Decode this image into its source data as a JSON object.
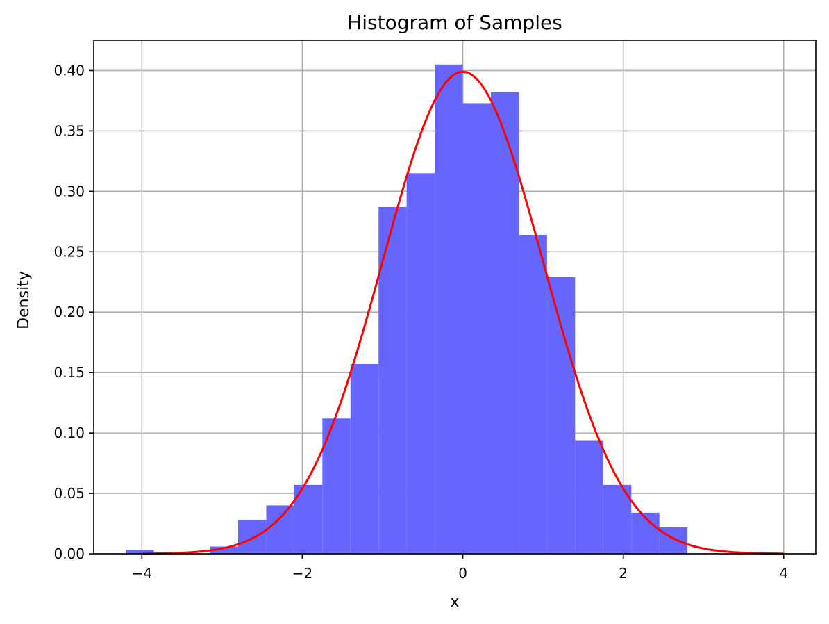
{
  "chart_data": {
    "type": "bar",
    "title": "Histogram of Samples",
    "xlabel": "x",
    "ylabel": "Density",
    "xlim": [
      -4.6,
      4.4
    ],
    "ylim": [
      0,
      0.425
    ],
    "grid": true,
    "xticks": [
      -4,
      -2,
      0,
      2,
      4
    ],
    "xtick_labels": [
      "−4",
      "−2",
      "0",
      "2",
      "4"
    ],
    "yticks": [
      0.0,
      0.05,
      0.1,
      0.15,
      0.2,
      0.25,
      0.3,
      0.35,
      0.4
    ],
    "ytick_labels": [
      "0.00",
      "0.05",
      "0.10",
      "0.15",
      "0.20",
      "0.25",
      "0.30",
      "0.35",
      "0.40"
    ],
    "series": [
      {
        "type": "histogram",
        "color": "#6666ff",
        "bins": [
          {
            "x0": -4.2,
            "x1": -3.85,
            "value": 0.003
          },
          {
            "x0": -3.85,
            "x1": -3.5,
            "value": 0.0
          },
          {
            "x0": -3.5,
            "x1": -3.15,
            "value": 0.0
          },
          {
            "x0": -3.15,
            "x1": -2.8,
            "value": 0.006
          },
          {
            "x0": -2.8,
            "x1": -2.45,
            "value": 0.028
          },
          {
            "x0": -2.45,
            "x1": -2.1,
            "value": 0.04
          },
          {
            "x0": -2.1,
            "x1": -1.75,
            "value": 0.057
          },
          {
            "x0": -1.75,
            "x1": -1.4,
            "value": 0.112
          },
          {
            "x0": -1.4,
            "x1": -1.05,
            "value": 0.157
          },
          {
            "x0": -1.05,
            "x1": -0.7,
            "value": 0.287
          },
          {
            "x0": -0.7,
            "x1": -0.35,
            "value": 0.315
          },
          {
            "x0": -0.35,
            "x1": 0.0,
            "value": 0.405
          },
          {
            "x0": 0.0,
            "x1": 0.35,
            "value": 0.373
          },
          {
            "x0": 0.35,
            "x1": 0.7,
            "value": 0.382
          },
          {
            "x0": 0.7,
            "x1": 1.05,
            "value": 0.264
          },
          {
            "x0": 1.05,
            "x1": 1.4,
            "value": 0.229
          },
          {
            "x0": 1.4,
            "x1": 1.75,
            "value": 0.094
          },
          {
            "x0": 1.75,
            "x1": 2.1,
            "value": 0.057
          },
          {
            "x0": 2.1,
            "x1": 2.45,
            "value": 0.034
          },
          {
            "x0": 2.45,
            "x1": 2.8,
            "value": 0.022
          }
        ]
      },
      {
        "type": "line",
        "function": "normal_pdf",
        "mean": 0,
        "std": 1,
        "domain": [
          -4,
          4
        ],
        "color": "#ff0000"
      }
    ]
  }
}
